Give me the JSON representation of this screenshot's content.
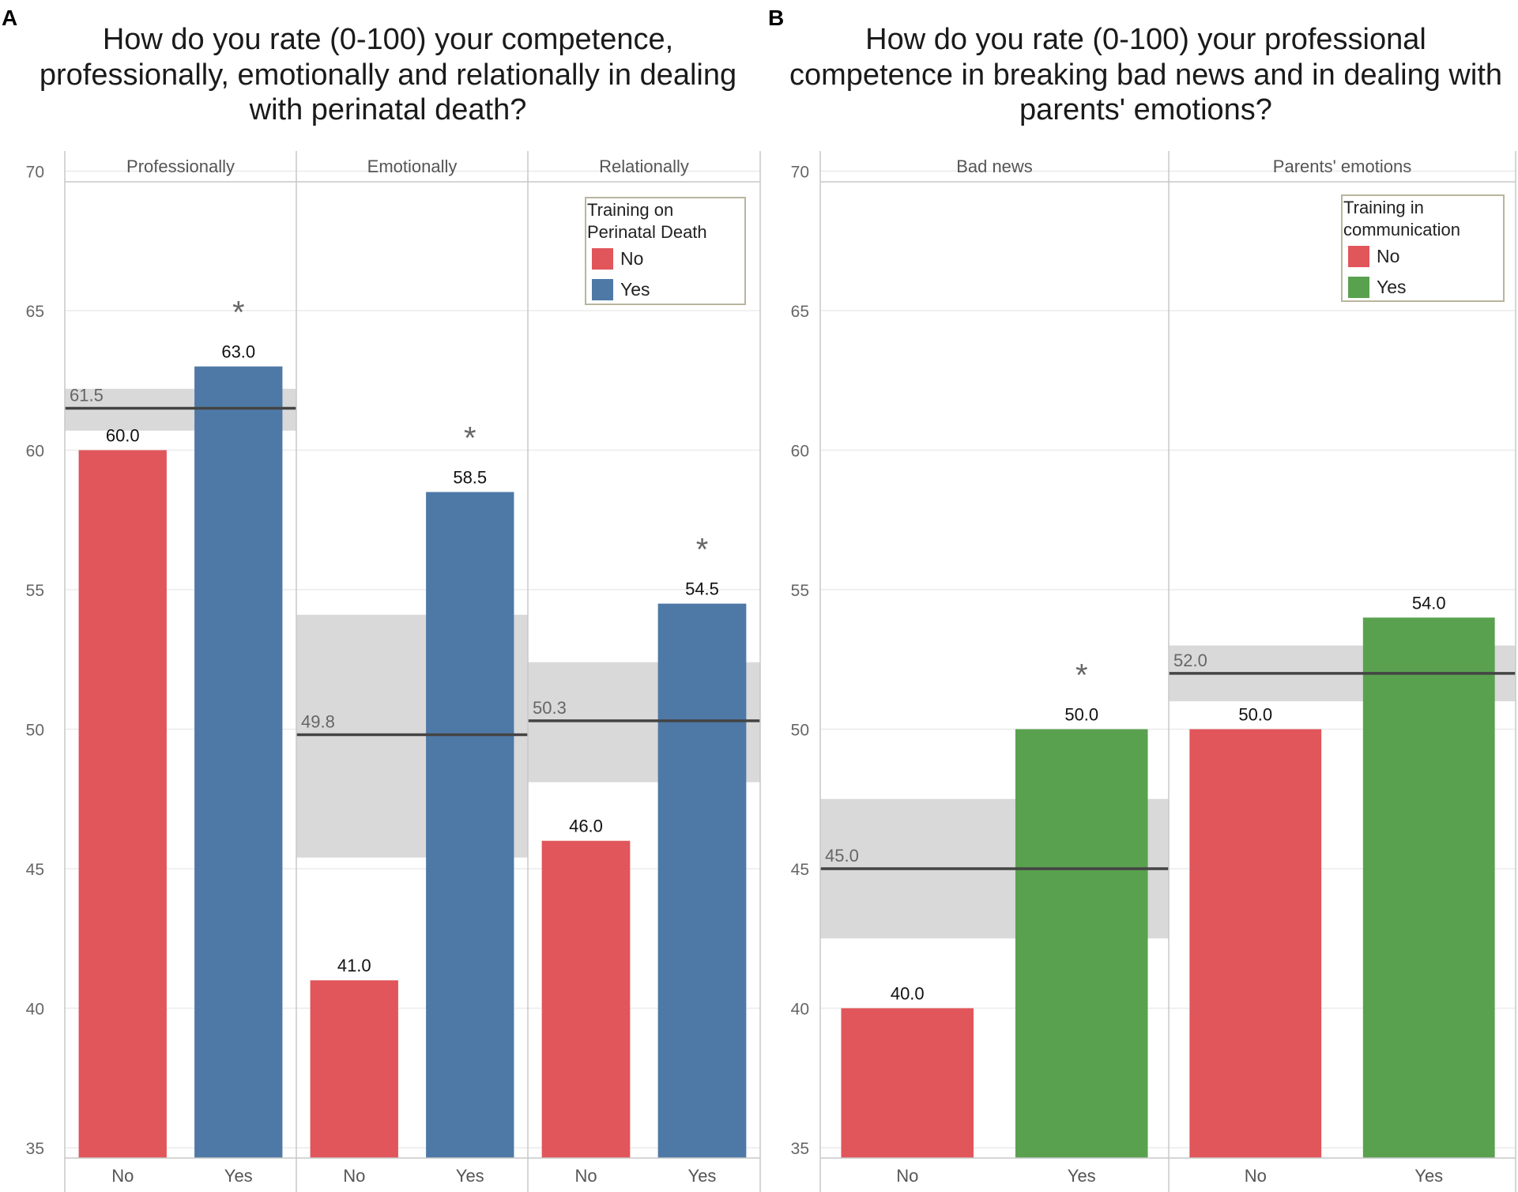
{
  "colors": {
    "no": "#e0565b",
    "yes_a": "#4e79a7",
    "yes_b": "#59a14f",
    "band": "#d9d9d9",
    "meanline": "#444444",
    "grid": "#ebebeb",
    "frame": "#c8c8c8"
  },
  "chart_data": [
    {
      "panel": "A",
      "type": "bar",
      "title_lines": [
        "How do you rate (0-100) your competence,",
        "professionally, emotionally and relationally in dealing",
        "with perinatal death?"
      ],
      "ylim": [
        35,
        70
      ],
      "yticks": [
        "35",
        "40",
        "45",
        "50",
        "55",
        "60",
        "65",
        "70"
      ],
      "legend": {
        "title_lines": [
          "Training on",
          "Perinatal Death"
        ],
        "items": [
          "No",
          "Yes"
        ],
        "position": "top-right"
      },
      "facets": [
        {
          "label": "Professionally",
          "categories": [
            "No",
            "Yes"
          ],
          "values": [
            60.0,
            63.0
          ],
          "value_labels": [
            "60.0",
            "63.0"
          ],
          "mean": 61.5,
          "mean_label": "61.5",
          "band": [
            60.7,
            62.2
          ],
          "significant": [
            false,
            true
          ]
        },
        {
          "label": "Emotionally",
          "categories": [
            "No",
            "Yes"
          ],
          "values": [
            41.0,
            58.5
          ],
          "value_labels": [
            "41.0",
            "58.5"
          ],
          "mean": 49.8,
          "mean_label": "49.8",
          "band": [
            45.4,
            54.1
          ],
          "significant": [
            false,
            true
          ]
        },
        {
          "label": "Relationally",
          "categories": [
            "No",
            "Yes"
          ],
          "values": [
            46.0,
            54.5
          ],
          "value_labels": [
            "46.0",
            "54.5"
          ],
          "mean": 50.3,
          "mean_label": "50.3",
          "band": [
            48.1,
            52.4
          ],
          "significant": [
            false,
            true
          ]
        }
      ]
    },
    {
      "panel": "B",
      "type": "bar",
      "title_lines": [
        "How do you rate (0-100) your professional",
        "competence in breaking bad news and in dealing with",
        "parents' emotions?"
      ],
      "ylim": [
        35,
        70
      ],
      "yticks": [
        "35",
        "40",
        "45",
        "50",
        "55",
        "60",
        "65",
        "70"
      ],
      "legend": {
        "title_lines": [
          "Training in",
          "communication"
        ],
        "items": [
          "No",
          "Yes"
        ],
        "position": "top-right"
      },
      "facets": [
        {
          "label": "Bad news",
          "categories": [
            "No",
            "Yes"
          ],
          "values": [
            40.0,
            50.0
          ],
          "value_labels": [
            "40.0",
            "50.0"
          ],
          "mean": 45.0,
          "mean_label": "45.0",
          "band": [
            42.5,
            47.5
          ],
          "significant": [
            false,
            true
          ]
        },
        {
          "label": "Parents' emotions",
          "categories": [
            "No",
            "Yes"
          ],
          "values": [
            50.0,
            54.0
          ],
          "value_labels": [
            "50.0",
            "54.0"
          ],
          "mean": 52.0,
          "mean_label": "52.0",
          "band": [
            51.0,
            53.0
          ],
          "significant": [
            false,
            false
          ]
        }
      ]
    }
  ],
  "significance_marker": "*"
}
